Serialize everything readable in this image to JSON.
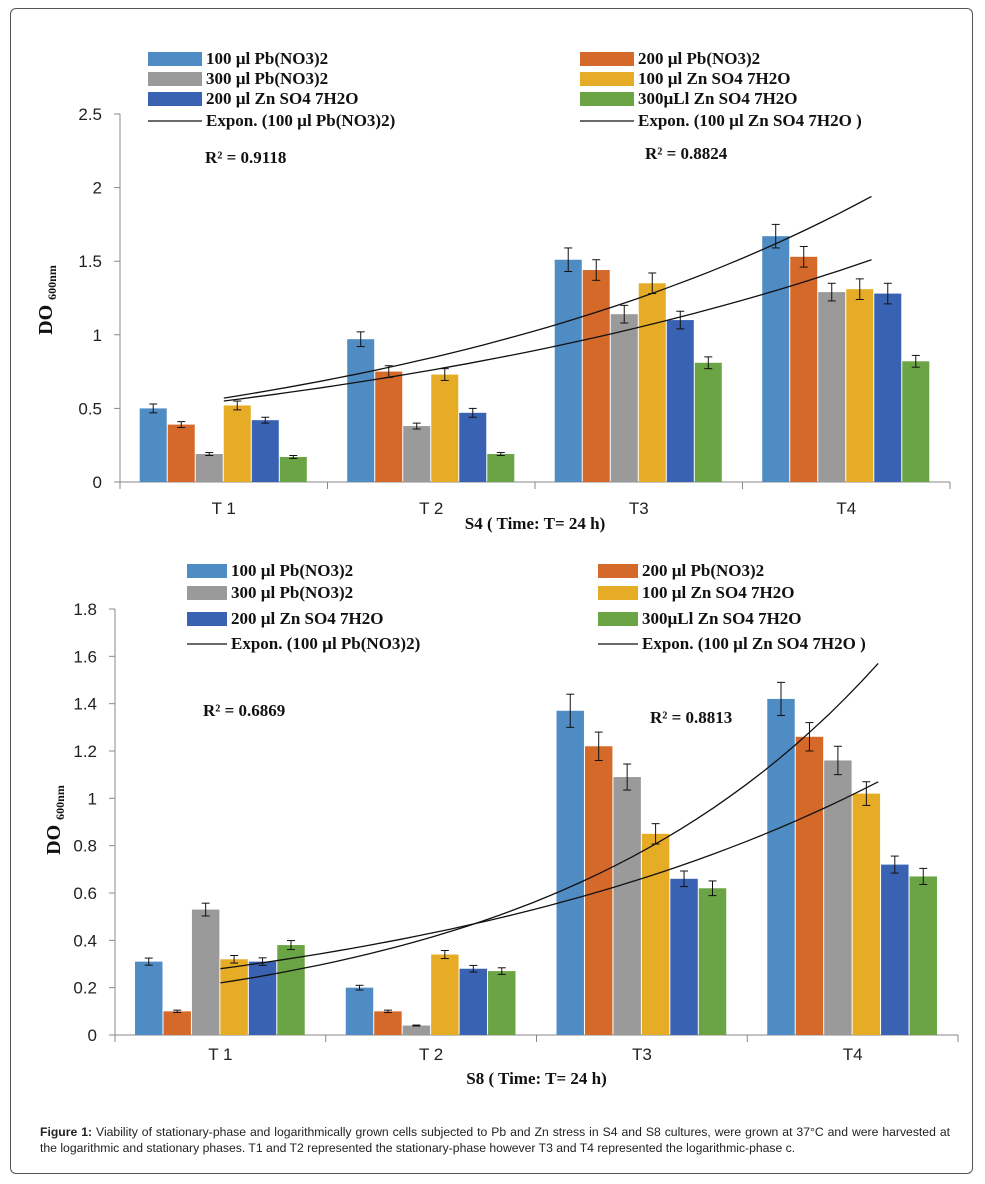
{
  "chart_data": [
    {
      "type": "bar",
      "ylabel": "DO",
      "ylabel_sub": "600nm",
      "xlabel": "S4 ( Time: T= 24 h)",
      "ylim": [
        0,
        2.5
      ],
      "yticks": [
        "0",
        "0.5",
        "1",
        "1.5",
        "2",
        "2.5"
      ],
      "categories": [
        "T 1",
        "T 2",
        "T3",
        "T4"
      ],
      "series": [
        {
          "name": "100 µl Pb(NO3)2",
          "color": "#4F8CC4",
          "values": [
            0.5,
            0.97,
            1.51,
            1.67
          ],
          "errors": [
            0.03,
            0.05,
            0.08,
            0.08
          ]
        },
        {
          "name": "200 µl Pb(NO3)2",
          "color": "#D5692A",
          "values": [
            0.39,
            0.75,
            1.44,
            1.53
          ],
          "errors": [
            0.02,
            0.04,
            0.07,
            0.07
          ]
        },
        {
          "name": "300 µl Pb(NO3)2",
          "color": "#9A9A9A",
          "values": [
            0.19,
            0.38,
            1.14,
            1.29
          ],
          "errors": [
            0.01,
            0.02,
            0.06,
            0.06
          ]
        },
        {
          "name": "100 µl Zn SO4 7H2O",
          "color": "#E7AC25",
          "values": [
            0.52,
            0.73,
            1.35,
            1.31
          ],
          "errors": [
            0.03,
            0.04,
            0.07,
            0.07
          ]
        },
        {
          "name": "200 µl Zn SO4 7H2O",
          "color": "#3A62B3",
          "values": [
            0.42,
            0.47,
            1.1,
            1.28
          ],
          "errors": [
            0.02,
            0.03,
            0.06,
            0.07
          ]
        },
        {
          "name": "300µLl Zn SO4 7H2O",
          "color": "#6BA444",
          "values": [
            0.17,
            0.19,
            0.81,
            0.82
          ],
          "errors": [
            0.01,
            0.01,
            0.04,
            0.04
          ]
        }
      ],
      "trendlines": [
        {
          "name": "Expon. (100 µl Pb(NO3)2)",
          "start": 0.57,
          "end": 1.94
        },
        {
          "name": "Expon. (100 µl Zn SO4 7H2O )",
          "start": 0.55,
          "end": 1.51
        }
      ],
      "r2": [
        "R² = 0.9118",
        "R² = 0.8824"
      ]
    },
    {
      "type": "bar",
      "ylabel": "DO",
      "ylabel_sub": "600nm",
      "xlabel": "S8 ( Time: T= 24 h)",
      "ylim": [
        0,
        1.8
      ],
      "yticks": [
        "0",
        "0.2",
        "0.4",
        "0.6",
        "0.8",
        "1",
        "1.2",
        "1.4",
        "1.6",
        "1.8"
      ],
      "categories": [
        "T 1",
        "T 2",
        "T3",
        "T4"
      ],
      "series": [
        {
          "name": "100 µl Pb(NO3)2",
          "color": "#4F8CC4",
          "values": [
            0.31,
            0.2,
            1.37,
            1.42
          ],
          "errors": [
            0.015,
            0.01,
            0.07,
            0.07
          ]
        },
        {
          "name": "200 µl Pb(NO3)2",
          "color": "#D5692A",
          "values": [
            0.1,
            0.1,
            1.22,
            1.26
          ],
          "errors": [
            0.005,
            0.005,
            0.06,
            0.06
          ]
        },
        {
          "name": "300 µl Pb(NO3)2",
          "color": "#9A9A9A",
          "values": [
            0.53,
            0.04,
            1.09,
            1.16
          ],
          "errors": [
            0.027,
            0.002,
            0.055,
            0.06
          ]
        },
        {
          "name": "100 µl Zn SO4 7H2O",
          "color": "#E7AC25",
          "values": [
            0.32,
            0.34,
            0.85,
            1.02
          ],
          "errors": [
            0.016,
            0.017,
            0.043,
            0.05
          ]
        },
        {
          "name": "200 µl Zn SO4 7H2O",
          "color": "#3A62B3",
          "values": [
            0.31,
            0.28,
            0.66,
            0.72
          ],
          "errors": [
            0.016,
            0.014,
            0.033,
            0.036
          ]
        },
        {
          "name": "300µLl Zn SO4 7H2O",
          "color": "#6BA444",
          "values": [
            0.38,
            0.27,
            0.62,
            0.67
          ],
          "errors": [
            0.019,
            0.014,
            0.031,
            0.034
          ]
        }
      ],
      "trendlines": [
        {
          "name": "Expon. (100 µl Pb(NO3)2)",
          "start": 0.22,
          "end": 1.57
        },
        {
          "name": "Expon. (100 µl Zn SO4 7H2O )",
          "start": 0.28,
          "end": 1.07
        }
      ],
      "r2": [
        "R² = 0.6869",
        "R² = 0.8813"
      ]
    }
  ],
  "caption": {
    "label": "Figure 1:",
    "text": " Viability of stationary-phase and logarithmically grown cells subjected to Pb and Zn stress in S4 and S8 cultures, were grown at 37°C and were harvested at the logarithmic and stationary phases. T1 and T2 represented the stationary-phase however T3 and T4 represented the logarithmic-phase c."
  }
}
